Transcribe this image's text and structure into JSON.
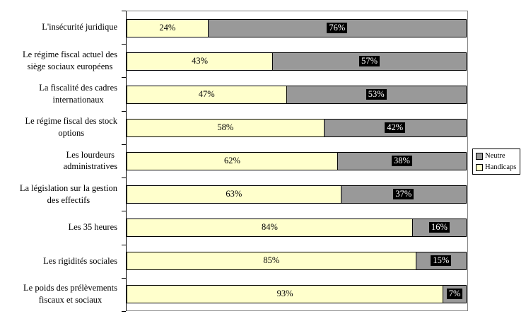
{
  "chart_data": {
    "type": "bar",
    "orientation": "horizontal",
    "stacked": true,
    "title": "",
    "xlabel": "",
    "ylabel": "",
    "xlim": [
      0,
      100
    ],
    "grid": false,
    "unit": "%",
    "categories": [
      "L'insécurité juridique",
      "Le régime fiscal actuel des\nsiège sociaux européens",
      "La fiscalité des cadres\ninternationaux",
      "Le régime fiscal des stock\noptions",
      "Les lourdeurs\nadministratives",
      "La législation sur la gestion\ndes effectifs",
      "Les 35 heures",
      "Les rigidités sociales",
      "Le poids des prélèvements\nfiscaux et sociaux"
    ],
    "series": [
      {
        "name": "Handicaps",
        "color": "#FFFFCC",
        "label_style": "plain-black-text",
        "values": [
          24,
          43,
          47,
          58,
          62,
          63,
          84,
          85,
          93
        ]
      },
      {
        "name": "Neutre",
        "color": "#999999",
        "label_style": "white-text-on-black",
        "values": [
          76,
          57,
          53,
          42,
          38,
          37,
          16,
          15,
          7
        ]
      }
    ],
    "legend": {
      "position": "right",
      "entries": [
        {
          "label": "Neutre",
          "color": "#999999"
        },
        {
          "label": "Handicaps",
          "color": "#FFFFCC"
        }
      ]
    }
  },
  "colors": {
    "background": "#FFFFFF",
    "plot_border": "#808080",
    "axis_line": "#000000",
    "bar_border": "#000000",
    "value_label_inverse_bg": "#000000",
    "value_label_inverse_text": "#FFFFFF"
  }
}
